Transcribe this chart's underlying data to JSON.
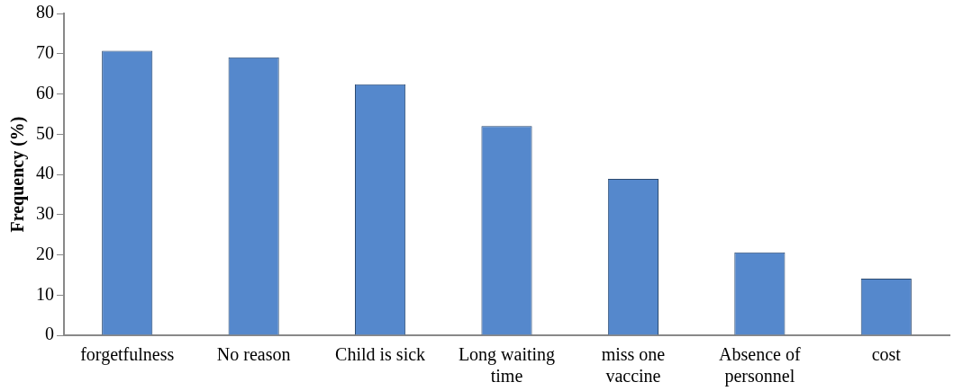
{
  "chart_data": {
    "type": "bar",
    "ylabel": "Frequency (%)",
    "categories": [
      "forgetfulness",
      "No reason",
      "Child is sick",
      "Long waiting time",
      "miss one vaccine",
      "Absence of personnel",
      "cost"
    ],
    "values": [
      70.7,
      69.1,
      62.4,
      52.0,
      38.9,
      20.6,
      14.1
    ],
    "color": "#5588cc",
    "ylim": [
      0,
      80
    ],
    "yticks": [
      0,
      10,
      20,
      30,
      40,
      50,
      60,
      70,
      80
    ],
    "grid": false,
    "legend": false
  }
}
